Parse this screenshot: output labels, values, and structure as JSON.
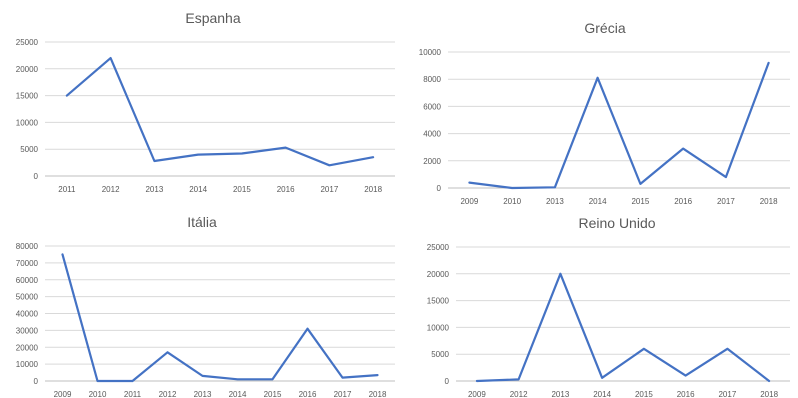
{
  "chart_data": [
    {
      "type": "line",
      "title": "Espanha",
      "categories": [
        "2011",
        "2012",
        "2013",
        "2014",
        "2015",
        "2016",
        "2017",
        "2018"
      ],
      "series": [
        {
          "values": [
            15000,
            22000,
            2800,
            4000,
            4200,
            5300,
            2000,
            3500
          ]
        }
      ],
      "yticks": [
        0,
        5000,
        10000,
        15000,
        20000,
        25000
      ],
      "ylim": [
        0,
        25000
      ],
      "grid": true,
      "line_color": "#4472c4"
    },
    {
      "type": "line",
      "title": "Grécia",
      "categories": [
        "2009",
        "2010",
        "2013",
        "2014",
        "2015",
        "2016",
        "2017",
        "2018"
      ],
      "series": [
        {
          "values": [
            400,
            0,
            50,
            8100,
            300,
            2900,
            800,
            9200
          ]
        }
      ],
      "yticks": [
        0,
        2000,
        4000,
        6000,
        8000,
        10000
      ],
      "ylim": [
        0,
        10000
      ],
      "grid": true,
      "line_color": "#4472c4"
    },
    {
      "type": "line",
      "title": "Itália",
      "categories": [
        "2009",
        "2010",
        "2011",
        "2012",
        "2013",
        "2014",
        "2015",
        "2016",
        "2017",
        "2018"
      ],
      "series": [
        {
          "values": [
            75000,
            0,
            0,
            17000,
            3000,
            1000,
            1000,
            31000,
            2000,
            3500
          ]
        }
      ],
      "yticks": [
        0,
        10000,
        20000,
        30000,
        40000,
        50000,
        60000,
        70000,
        80000
      ],
      "ylim": [
        0,
        80000
      ],
      "grid": true,
      "line_color": "#4472c4"
    },
    {
      "type": "line",
      "title": "Reino Unido",
      "categories": [
        "2009",
        "2012",
        "2013",
        "2014",
        "2015",
        "2016",
        "2017",
        "2018"
      ],
      "series": [
        {
          "values": [
            0,
            300,
            20000,
            600,
            6000,
            1000,
            6000,
            0
          ]
        }
      ],
      "yticks": [
        0,
        5000,
        10000,
        15000,
        20000,
        25000
      ],
      "ylim": [
        0,
        25000
      ],
      "grid": true,
      "line_color": "#4472c4"
    }
  ]
}
